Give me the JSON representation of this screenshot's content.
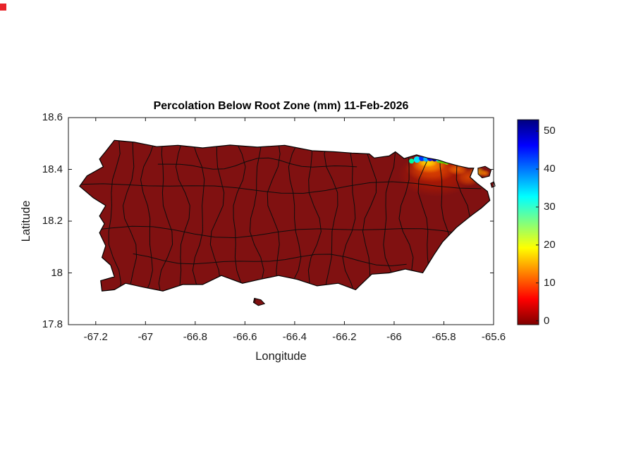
{
  "chart_data": {
    "type": "heatmap",
    "title": "Percolation Below Root Zone (mm) 11-Feb-2026",
    "xlabel": "Longitude",
    "ylabel": "Latitude",
    "xlim": [
      -67.31,
      -65.6
    ],
    "ylim": [
      17.8,
      18.6
    ],
    "xticks": [
      -67.2,
      -67,
      -66.8,
      -66.6,
      -66.4,
      -66.2,
      -66,
      -65.8,
      -65.6
    ],
    "xtick_labels": [
      "-67.2",
      "-67",
      "-66.8",
      "-66.6",
      "-66.4",
      "-66.2",
      "-66",
      "-65.8",
      "-65.6"
    ],
    "yticks": [
      17.8,
      18,
      18.2,
      18.4,
      18.6
    ],
    "ytick_labels": [
      "17.8",
      "18",
      "18.2",
      "18.4",
      "18.6"
    ],
    "grid": false,
    "region": "Puerto Rico municipal map",
    "values_summary": {
      "background_mm": 0,
      "max_mm": 50,
      "high_value_area": "northeast coast near longitude -65.9 to -65.7, latitude 18.35 to 18.45"
    },
    "base_color": "#801111",
    "boundary_color": "#0d0d0d",
    "colorbar": {
      "ticks": [
        0,
        10,
        20,
        30,
        40,
        50
      ],
      "range": [
        -1,
        53
      ],
      "colormap": "jet (dark red = 0 at bottom, dark blue = max at top)",
      "stops": [
        {
          "pos": 0.0,
          "color": "#7f0000"
        },
        {
          "pos": 0.125,
          "color": "#ff0000"
        },
        {
          "pos": 0.375,
          "color": "#ffff00"
        },
        {
          "pos": 0.625,
          "color": "#00ffff"
        },
        {
          "pos": 0.875,
          "color": "#0000ff"
        },
        {
          "pos": 1.0,
          "color": "#00007f"
        }
      ]
    },
    "island_outline": [
      [
        -67.161,
        18.468
      ],
      [
        -67.125,
        18.512
      ],
      [
        -67.045,
        18.505
      ],
      [
        -66.955,
        18.488
      ],
      [
        -66.87,
        18.493
      ],
      [
        -66.77,
        18.483
      ],
      [
        -66.66,
        18.494
      ],
      [
        -66.55,
        18.486
      ],
      [
        -66.44,
        18.493
      ],
      [
        -66.33,
        18.472
      ],
      [
        -66.24,
        18.468
      ],
      [
        -66.17,
        18.463
      ],
      [
        -66.1,
        18.46
      ],
      [
        -66.08,
        18.444
      ],
      [
        -66.02,
        18.452
      ],
      [
        -65.995,
        18.468
      ],
      [
        -65.96,
        18.442
      ],
      [
        -65.91,
        18.456
      ],
      [
        -65.865,
        18.444
      ],
      [
        -65.824,
        18.437
      ],
      [
        -65.79,
        18.426
      ],
      [
        -65.74,
        18.413
      ],
      [
        -65.7,
        18.405
      ],
      [
        -65.68,
        18.405
      ],
      [
        -65.695,
        18.37
      ],
      [
        -65.665,
        18.345
      ],
      [
        -65.625,
        18.315
      ],
      [
        -65.615,
        18.28
      ],
      [
        -65.65,
        18.25
      ],
      [
        -65.685,
        18.225
      ],
      [
        -65.705,
        18.21
      ],
      [
        -65.75,
        18.175
      ],
      [
        -65.805,
        18.12
      ],
      [
        -65.84,
        18.07
      ],
      [
        -65.885,
        18.0
      ],
      [
        -65.955,
        18.015
      ],
      [
        -66.02,
        18.0
      ],
      [
        -66.09,
        17.995
      ],
      [
        -66.155,
        17.935
      ],
      [
        -66.225,
        17.96
      ],
      [
        -66.31,
        17.95
      ],
      [
        -66.39,
        17.975
      ],
      [
        -66.465,
        17.99
      ],
      [
        -66.54,
        17.975
      ],
      [
        -66.61,
        17.96
      ],
      [
        -66.695,
        17.99
      ],
      [
        -66.77,
        17.955
      ],
      [
        -66.85,
        17.955
      ],
      [
        -66.93,
        17.93
      ],
      [
        -67.01,
        17.945
      ],
      [
        -67.08,
        17.96
      ],
      [
        -67.125,
        17.935
      ],
      [
        -67.175,
        17.93
      ],
      [
        -67.18,
        17.97
      ],
      [
        -67.125,
        17.985
      ],
      [
        -67.14,
        18.03
      ],
      [
        -67.175,
        18.06
      ],
      [
        -67.16,
        18.105
      ],
      [
        -67.185,
        18.155
      ],
      [
        -67.165,
        18.19
      ],
      [
        -67.185,
        18.22
      ],
      [
        -67.16,
        18.26
      ],
      [
        -67.21,
        18.29
      ],
      [
        -67.265,
        18.335
      ],
      [
        -67.235,
        18.375
      ],
      [
        -67.17,
        18.41
      ],
      [
        -67.185,
        18.44
      ]
    ],
    "islets": [
      [
        [
          -65.663,
          18.405
        ],
        [
          -65.634,
          18.412
        ],
        [
          -65.61,
          18.398
        ],
        [
          -65.617,
          18.374
        ],
        [
          -65.646,
          18.367
        ],
        [
          -65.662,
          18.382
        ]
      ],
      [
        [
          -65.612,
          18.346
        ],
        [
          -65.599,
          18.352
        ],
        [
          -65.594,
          18.336
        ],
        [
          -65.607,
          18.33
        ]
      ],
      [
        [
          -66.562,
          17.902
        ],
        [
          -66.536,
          17.896
        ],
        [
          -66.521,
          17.881
        ],
        [
          -66.546,
          17.874
        ],
        [
          -66.566,
          17.886
        ]
      ]
    ],
    "municipal_boundaries": {
      "vertical_lons": [
        -67.13,
        -67.06,
        -66.99,
        -66.92,
        -66.85,
        -66.78,
        -66.71,
        -66.63,
        -66.555,
        -66.48,
        -66.4,
        -66.325,
        -66.25,
        -66.175,
        -66.1,
        -66.025,
        -65.95,
        -65.875,
        -65.8,
        -65.725
      ],
      "horizontal_lines": [
        {
          "lat": 18.33,
          "lon_range": [
            -67.26,
            -65.65
          ]
        },
        {
          "lat": 18.16,
          "lon_range": [
            -67.22,
            -65.72
          ]
        },
        {
          "lat": 18.05,
          "lon_range": [
            -67.05,
            -65.95
          ]
        },
        {
          "lat": 18.42,
          "lon_range": [
            -66.95,
            -66.15
          ]
        }
      ]
    },
    "hotspot": {
      "description": "High percolation values along the northeast coast",
      "glows": [
        {
          "cx": -65.83,
          "cy": 18.38,
          "rx": 0.155,
          "ry": 0.085,
          "color": "#b71c00",
          "opacity": 0.9
        },
        {
          "cx": -65.85,
          "cy": 18.405,
          "rx": 0.105,
          "ry": 0.055,
          "color": "#e84e00",
          "opacity": 0.9
        },
        {
          "cx": -65.86,
          "cy": 18.42,
          "rx": 0.07,
          "ry": 0.035,
          "color": "#ff9800",
          "opacity": 0.95
        },
        {
          "cx": -65.865,
          "cy": 18.428,
          "rx": 0.042,
          "ry": 0.02,
          "color": "#ffe000",
          "opacity": 0.95
        },
        {
          "cx": -65.7,
          "cy": 18.37,
          "rx": 0.05,
          "ry": 0.035,
          "color": "#e84e00",
          "opacity": 0.8
        },
        {
          "cx": -65.665,
          "cy": 18.39,
          "rx": 0.032,
          "ry": 0.02,
          "color": "#ffb300",
          "opacity": 0.85
        },
        {
          "cx": -65.745,
          "cy": 18.4,
          "rx": 0.04,
          "ry": 0.022,
          "color": "#ff7400",
          "opacity": 0.8
        },
        {
          "cx": -65.635,
          "cy": 18.385,
          "rx": 0.02,
          "ry": 0.014,
          "color": "#ff8000",
          "opacity": 0.85
        }
      ],
      "dots": [
        {
          "cx": -65.93,
          "cy": 18.432,
          "r": 0.01,
          "color": "#00ff99"
        },
        {
          "cx": -65.908,
          "cy": 18.438,
          "r": 0.013,
          "color": "#00e5ff"
        },
        {
          "cx": -65.888,
          "cy": 18.443,
          "r": 0.012,
          "color": "#0033ff"
        },
        {
          "cx": -65.872,
          "cy": 18.44,
          "r": 0.011,
          "color": "#00b0ff"
        },
        {
          "cx": -65.855,
          "cy": 18.443,
          "r": 0.012,
          "color": "#1515e0"
        },
        {
          "cx": -65.838,
          "cy": 18.44,
          "r": 0.01,
          "color": "#000a99"
        },
        {
          "cx": -65.822,
          "cy": 18.437,
          "r": 0.009,
          "color": "#00c8ff"
        },
        {
          "cx": -65.806,
          "cy": 18.433,
          "r": 0.011,
          "color": "#55e000"
        },
        {
          "cx": -65.788,
          "cy": 18.428,
          "r": 0.01,
          "color": "#8cf000"
        }
      ],
      "dash": {
        "from": [
          -65.823,
          18.429
        ],
        "to": [
          -65.786,
          18.424
        ],
        "color": "#66cc00"
      }
    }
  },
  "decorations": {
    "corner_marker_color": "#e8232a"
  }
}
